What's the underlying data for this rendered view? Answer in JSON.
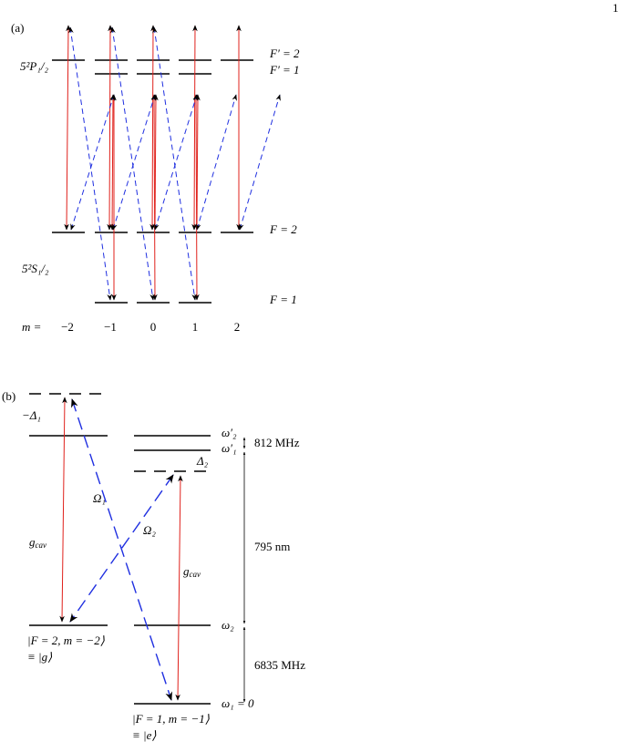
{
  "page_number": "1",
  "panel_a": {
    "label": "(a)",
    "excited_state": "5²P₁/₂",
    "ground_state": "5²S₁/₂",
    "levels": {
      "f_prime_2": "F′ = 2",
      "f_prime_1": "F′ = 1",
      "f_2": "F = 2",
      "f_1": "F = 1"
    },
    "m_label": "m =",
    "m_values": [
      "−2",
      "−1",
      "0",
      "1",
      "2"
    ]
  },
  "panel_b": {
    "label": "(b)",
    "detuning_1": "−Δ₁",
    "detuning_2": "Δ₂",
    "omega_1": "Ω₁",
    "omega_2": "Ω₂",
    "g_cav": {
      "main": "g",
      "sub": "cav"
    },
    "freq_labels": [
      "ω′₂",
      "ω′₁",
      "ω₂",
      "ω₁ = 0"
    ],
    "splittings": [
      "812 MHz",
      "795 nm",
      "6835 MHz"
    ],
    "state_g": [
      "|F = 2, m = −2⟩",
      "≡ |g⟩"
    ],
    "state_e": [
      "|F = 1, m = −1⟩",
      "≡ |e⟩"
    ]
  }
}
